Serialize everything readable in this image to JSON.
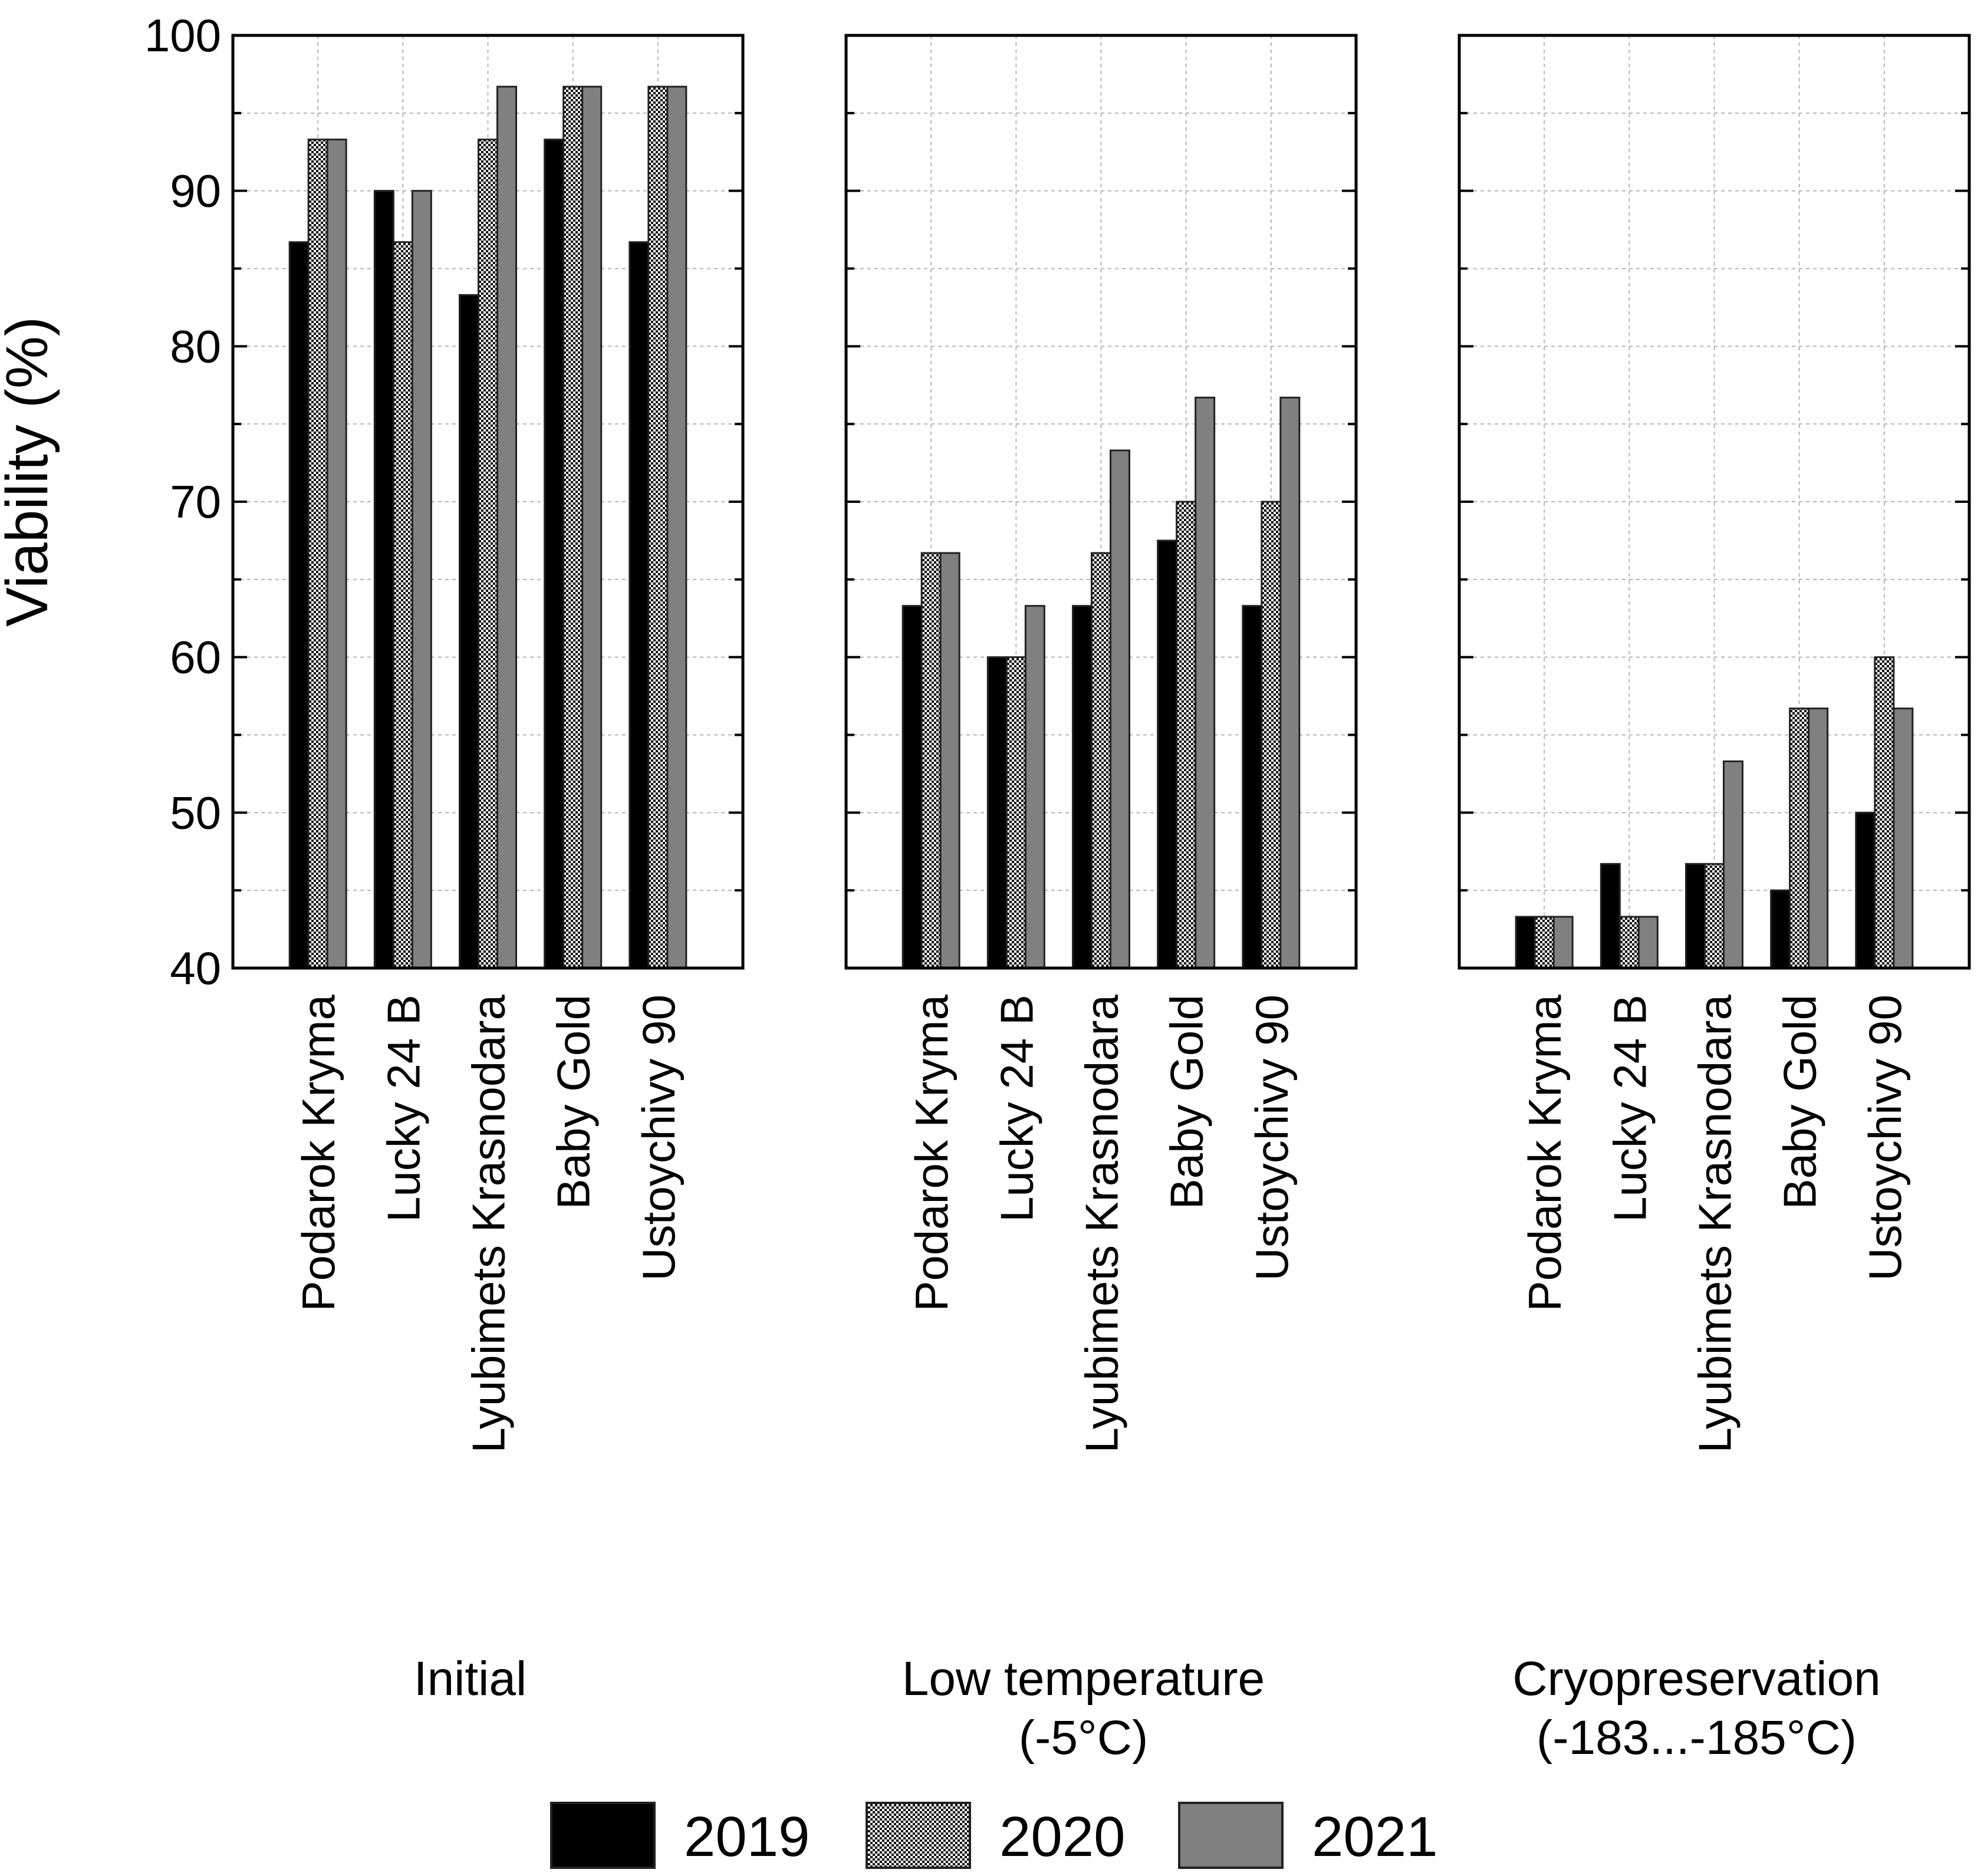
{
  "chart_data": {
    "type": "bar",
    "ylabel": "Viability (%)",
    "ylim": [
      40,
      100
    ],
    "yticks": [
      "40",
      "50",
      "60",
      "70",
      "80",
      "90",
      "100"
    ],
    "grid": true,
    "legend": [
      "2019",
      "2020",
      "2021"
    ],
    "legend_position": "bottom",
    "colors": {
      "2019": "#000000",
      "2020": "pattern-checker",
      "2021": "#808080"
    },
    "categories": [
      "Podarok Kryma",
      "Lucky 24 B",
      "Lyubimets Krasnodara",
      "Baby Gold",
      "Ustoychivy 90"
    ],
    "panels": [
      {
        "label_lines": [
          "Initial"
        ],
        "series": [
          {
            "name": "2019",
            "values": [
              86.7,
              90.0,
              83.3,
              93.3,
              86.7
            ]
          },
          {
            "name": "2020",
            "values": [
              93.3,
              86.7,
              93.3,
              96.7,
              96.7
            ]
          },
          {
            "name": "2021",
            "values": [
              93.3,
              90.0,
              96.7,
              96.7,
              96.7
            ]
          }
        ]
      },
      {
        "label_lines": [
          "Low temperature",
          "(-5°C)"
        ],
        "series": [
          {
            "name": "2019",
            "values": [
              63.3,
              60.0,
              63.3,
              67.5,
              63.3
            ]
          },
          {
            "name": "2020",
            "values": [
              66.7,
              60.0,
              66.7,
              70.0,
              70.0
            ]
          },
          {
            "name": "2021",
            "values": [
              66.7,
              63.3,
              73.3,
              76.7,
              76.7
            ]
          }
        ]
      },
      {
        "label_lines": [
          "Cryopreservation",
          "(-183...-185°C)"
        ],
        "series": [
          {
            "name": "2019",
            "values": [
              43.3,
              46.7,
              46.7,
              45.0,
              50.0
            ]
          },
          {
            "name": "2020",
            "values": [
              43.3,
              43.3,
              46.7,
              56.7,
              60.0
            ]
          },
          {
            "name": "2021",
            "values": [
              43.3,
              43.3,
              53.3,
              56.7,
              56.7
            ]
          }
        ]
      }
    ]
  }
}
